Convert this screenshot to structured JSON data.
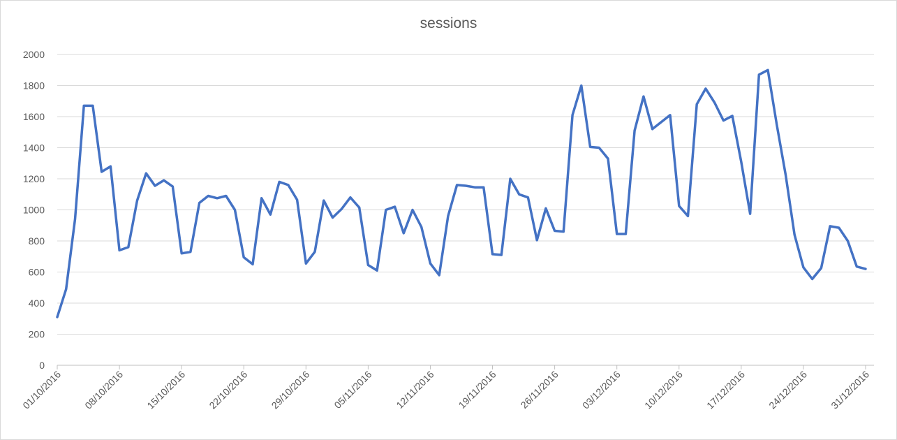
{
  "chart_data": {
    "type": "line",
    "title": "sessions",
    "xlabel": "",
    "ylabel": "",
    "ylim": [
      0,
      2000
    ],
    "yticks": [
      0,
      200,
      400,
      600,
      800,
      1000,
      1200,
      1400,
      1600,
      1800,
      2000
    ],
    "grid": true,
    "legend": "none",
    "x_start": "01/10/2016",
    "x_end": "31/12/2016",
    "x_tick_labels": [
      "01/10/2016",
      "08/10/2016",
      "15/10/2016",
      "22/10/2016",
      "29/10/2016",
      "05/11/2016",
      "12/11/2016",
      "19/11/2016",
      "26/11/2016",
      "03/12/2016",
      "10/12/2016",
      "17/12/2016",
      "24/12/2016",
      "31/12/2016"
    ],
    "series": [
      {
        "color": "#4472C4",
        "values": [
          310,
          490,
          940,
          1670,
          1670,
          1245,
          1280,
          740,
          760,
          1060,
          1235,
          1155,
          1190,
          1150,
          720,
          730,
          1045,
          1090,
          1075,
          1090,
          1000,
          695,
          650,
          1075,
          970,
          1180,
          1160,
          1065,
          655,
          730,
          1060,
          950,
          1005,
          1080,
          1015,
          645,
          610,
          1000,
          1020,
          850,
          1000,
          890,
          655,
          580,
          960,
          1160,
          1155,
          1145,
          1145,
          715,
          710,
          1200,
          1100,
          1080,
          805,
          1010,
          865,
          860,
          1610,
          1800,
          1405,
          1400,
          1330,
          845,
          845,
          1510,
          1730,
          1520,
          1565,
          1610,
          1025,
          960,
          1680,
          1780,
          1690,
          1575,
          1605,
          1310,
          975,
          1870,
          1900,
          1550,
          1225,
          840,
          630,
          555,
          625,
          895,
          885,
          800,
          635,
          620
        ]
      }
    ]
  }
}
